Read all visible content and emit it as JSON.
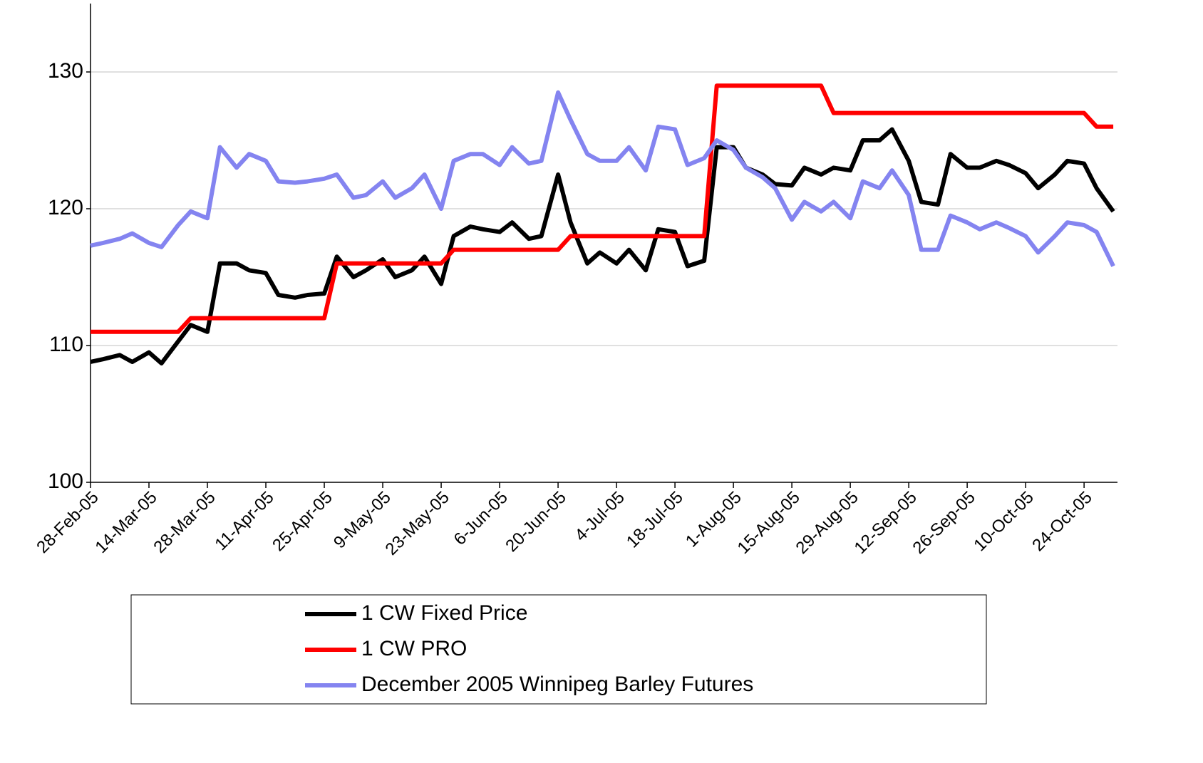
{
  "chart_data": {
    "type": "line",
    "x": [
      "2005-02-28",
      "2005-03-03",
      "2005-03-07",
      "2005-03-10",
      "2005-03-14",
      "2005-03-17",
      "2005-03-21",
      "2005-03-24",
      "2005-03-28",
      "2005-03-31",
      "2005-04-04",
      "2005-04-07",
      "2005-04-11",
      "2005-04-14",
      "2005-04-18",
      "2005-04-21",
      "2005-04-25",
      "2005-04-28",
      "2005-05-02",
      "2005-05-05",
      "2005-05-09",
      "2005-05-12",
      "2005-05-16",
      "2005-05-19",
      "2005-05-23",
      "2005-05-26",
      "2005-05-30",
      "2005-06-02",
      "2005-06-06",
      "2005-06-09",
      "2005-06-13",
      "2005-06-16",
      "2005-06-20",
      "2005-06-23",
      "2005-06-27",
      "2005-06-30",
      "2005-07-04",
      "2005-07-07",
      "2005-07-11",
      "2005-07-14",
      "2005-07-18",
      "2005-07-21",
      "2005-07-25",
      "2005-07-28",
      "2005-08-01",
      "2005-08-04",
      "2005-08-08",
      "2005-08-11",
      "2005-08-15",
      "2005-08-18",
      "2005-08-22",
      "2005-08-25",
      "2005-08-29",
      "2005-09-01",
      "2005-09-05",
      "2005-09-08",
      "2005-09-12",
      "2005-09-15",
      "2005-09-19",
      "2005-09-22",
      "2005-09-26",
      "2005-09-29",
      "2005-10-03",
      "2005-10-06",
      "2005-10-10",
      "2005-10-13",
      "2005-10-17",
      "2005-10-20",
      "2005-10-24",
      "2005-10-27",
      "2005-10-31"
    ],
    "series": [
      {
        "name": "1 CW Fixed Price",
        "color": "#000000",
        "values": [
          108.8,
          109,
          109.3,
          108.8,
          109.5,
          108.7,
          110.3,
          111.5,
          111,
          116,
          116,
          115.5,
          115.3,
          113.7,
          113.5,
          113.7,
          113.8,
          116.5,
          115,
          115.5,
          116.3,
          115,
          115.5,
          116.5,
          114.5,
          118,
          118.7,
          118.5,
          118.3,
          119,
          117.8,
          118,
          122.5,
          119,
          116,
          116.8,
          116,
          117,
          115.5,
          118.5,
          118.3,
          115.8,
          116.2,
          124.5,
          124.5,
          123,
          122.5,
          121.8,
          121.7,
          123,
          122.5,
          123,
          122.8,
          125,
          125,
          125.8,
          123.5,
          120.5,
          120.3,
          124,
          123,
          123,
          123.5,
          123.2,
          122.6,
          121.5,
          122.5,
          123.5,
          123.3,
          121.5,
          119.8
        ]
      },
      {
        "name": "1 CW PRO",
        "color": "#ff0000",
        "values": [
          111,
          111,
          111,
          111,
          111,
          111,
          111,
          112,
          112,
          112,
          112,
          112,
          112,
          112,
          112,
          112,
          112,
          116,
          116,
          116,
          116,
          116,
          116,
          116,
          116,
          117,
          117,
          117,
          117,
          117,
          117,
          117,
          117,
          118,
          118,
          118,
          118,
          118,
          118,
          118,
          118,
          118,
          118,
          129,
          129,
          129,
          129,
          129,
          129,
          129,
          129,
          127,
          127,
          127,
          127,
          127,
          127,
          127,
          127,
          127,
          127,
          127,
          127,
          127,
          127,
          127,
          127,
          127,
          127,
          126,
          126
        ]
      },
      {
        "name": "December 2005 Winnipeg Barley Futures",
        "color": "#8484f0",
        "values": [
          117.3,
          117.5,
          117.8,
          118.2,
          117.5,
          117.2,
          118.8,
          119.8,
          119.3,
          124.5,
          123,
          124,
          123.5,
          122,
          121.9,
          122,
          122.2,
          122.5,
          120.8,
          121,
          122,
          120.8,
          121.5,
          122.5,
          120,
          123.5,
          124,
          124,
          123.2,
          124.5,
          123.3,
          123.5,
          128.5,
          126.5,
          124,
          123.5,
          123.5,
          124.5,
          122.8,
          126,
          125.8,
          123.2,
          123.7,
          125,
          124.3,
          123,
          122.3,
          121.5,
          119.2,
          120.5,
          119.8,
          120.5,
          119.3,
          122,
          121.5,
          122.8,
          121,
          117,
          117,
          119.5,
          119,
          118.5,
          119,
          118.6,
          118,
          116.8,
          118,
          119,
          118.8,
          118.3,
          115.8
        ]
      }
    ],
    "xlim": [
      "2005-02-28",
      "2005-11-01"
    ],
    "xticks": [
      {
        "value": "2005-02-28",
        "label": "28-Feb-05"
      },
      {
        "value": "2005-03-14",
        "label": "14-Mar-05"
      },
      {
        "value": "2005-03-28",
        "label": "28-Mar-05"
      },
      {
        "value": "2005-04-11",
        "label": "11-Apr-05"
      },
      {
        "value": "2005-04-25",
        "label": "25-Apr-05"
      },
      {
        "value": "2005-05-09",
        "label": "9-May-05"
      },
      {
        "value": "2005-05-23",
        "label": "23-May-05"
      },
      {
        "value": "2005-06-06",
        "label": "6-Jun-05"
      },
      {
        "value": "2005-06-20",
        "label": "20-Jun-05"
      },
      {
        "value": "2005-07-04",
        "label": "4-Jul-05"
      },
      {
        "value": "2005-07-18",
        "label": "18-Jul-05"
      },
      {
        "value": "2005-08-01",
        "label": "1-Aug-05"
      },
      {
        "value": "2005-08-15",
        "label": "15-Aug-05"
      },
      {
        "value": "2005-08-29",
        "label": "29-Aug-05"
      },
      {
        "value": "2005-09-12",
        "label": "12-Sep-05"
      },
      {
        "value": "2005-09-26",
        "label": "26-Sep-05"
      },
      {
        "value": "2005-10-10",
        "label": "10-Oct-05"
      },
      {
        "value": "2005-10-24",
        "label": "24-Oct-05"
      }
    ],
    "ylim": [
      100,
      135
    ],
    "yticks": [
      100,
      110,
      120,
      130
    ],
    "grid": true,
    "legend": "bottom"
  }
}
